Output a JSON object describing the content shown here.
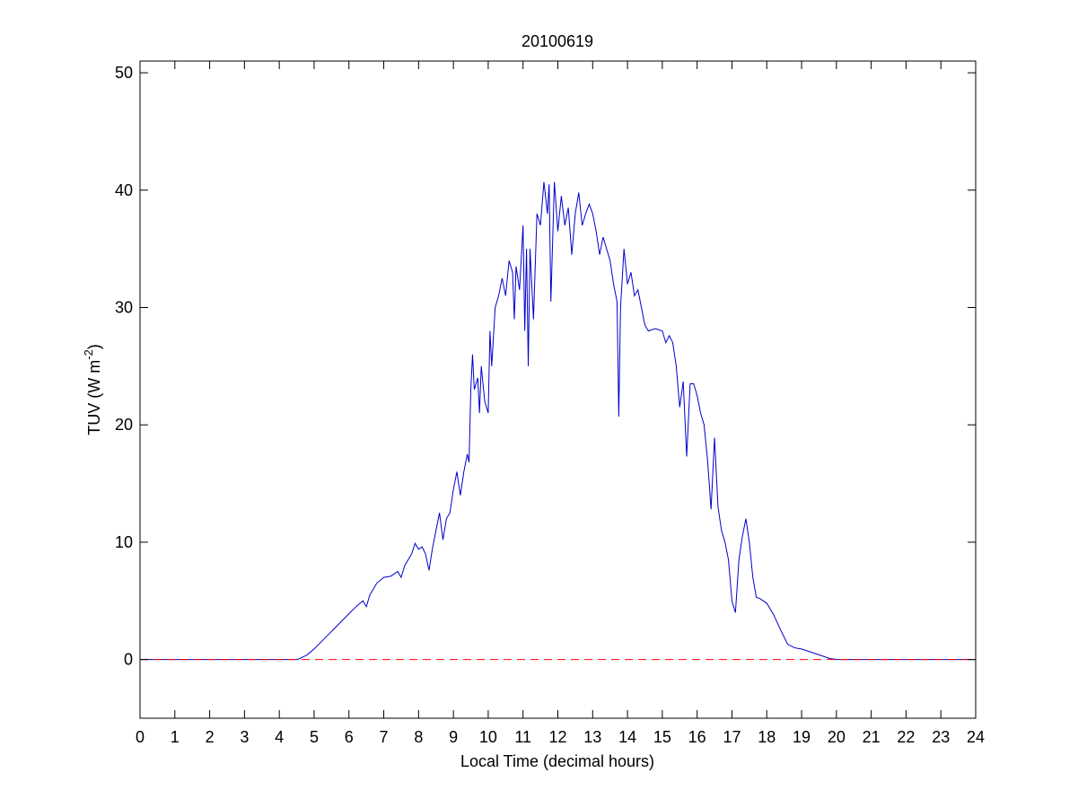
{
  "chart_data": {
    "type": "line",
    "title": "20100619",
    "xlabel": "Local Time (decimal hours)",
    "ylabel": [
      "TUV (W m",
      "-2",
      ")"
    ],
    "xlim": [
      0,
      24
    ],
    "xticks": [
      0,
      1,
      2,
      3,
      4,
      5,
      6,
      7,
      8,
      9,
      10,
      11,
      12,
      13,
      14,
      15,
      16,
      17,
      18,
      19,
      20,
      21,
      22,
      23,
      24
    ],
    "ylim": [
      -5,
      51
    ],
    "yticks": [
      0,
      10,
      20,
      30,
      40,
      50
    ],
    "grid": false,
    "box": true,
    "series": [
      {
        "color": "#0000cc",
        "linestyle": "solid",
        "x": [
          0,
          4.5,
          4.6,
          4.8,
          5.0,
          5.2,
          5.4,
          5.6,
          5.8,
          6.0,
          6.2,
          6.4,
          6.5,
          6.6,
          6.8,
          7.0,
          7.2,
          7.4,
          7.5,
          7.6,
          7.8,
          7.9,
          8.0,
          8.1,
          8.2,
          8.3,
          8.4,
          8.5,
          8.6,
          8.7,
          8.8,
          8.9,
          9.0,
          9.1,
          9.2,
          9.3,
          9.4,
          9.45,
          9.5,
          9.55,
          9.6,
          9.7,
          9.75,
          9.8,
          9.9,
          10.0,
          10.05,
          10.1,
          10.2,
          10.3,
          10.4,
          10.5,
          10.6,
          10.7,
          10.75,
          10.8,
          10.9,
          11.0,
          11.05,
          11.1,
          11.15,
          11.2,
          11.3,
          11.4,
          11.5,
          11.6,
          11.7,
          11.75,
          11.8,
          11.9,
          12.0,
          12.1,
          12.2,
          12.3,
          12.4,
          12.5,
          12.6,
          12.7,
          12.8,
          12.9,
          13.0,
          13.1,
          13.2,
          13.3,
          13.4,
          13.5,
          13.6,
          13.7,
          13.75,
          13.8,
          13.9,
          14.0,
          14.1,
          14.2,
          14.3,
          14.4,
          14.5,
          14.6,
          14.8,
          15.0,
          15.1,
          15.2,
          15.3,
          15.4,
          15.5,
          15.6,
          15.7,
          15.8,
          15.9,
          16.0,
          16.1,
          16.2,
          16.3,
          16.4,
          16.5,
          16.6,
          16.7,
          16.8,
          16.9,
          17.0,
          17.1,
          17.2,
          17.3,
          17.4,
          17.5,
          17.6,
          17.7,
          17.8,
          18.0,
          18.2,
          18.4,
          18.6,
          18.8,
          19.0,
          19.2,
          19.5,
          19.8,
          20.0,
          24
        ],
        "values": [
          0,
          0,
          0.1,
          0.4,
          0.9,
          1.5,
          2.1,
          2.7,
          3.3,
          3.9,
          4.5,
          5.0,
          4.5,
          5.5,
          6.5,
          7.0,
          7.1,
          7.5,
          7.0,
          8.0,
          9.0,
          9.9,
          9.4,
          9.6,
          9.0,
          7.6,
          9.5,
          11.0,
          12.5,
          10.2,
          12.0,
          12.5,
          14.5,
          16.0,
          14.0,
          16.0,
          17.5,
          16.8,
          23.0,
          26.0,
          23.0,
          24.0,
          21.0,
          25.0,
          22.0,
          21.0,
          28.0,
          25.0,
          30.0,
          31.0,
          32.5,
          31.0,
          34.0,
          33.0,
          29.0,
          33.5,
          31.5,
          37.0,
          28.0,
          35.0,
          25.0,
          35.0,
          29.0,
          38.0,
          37.0,
          40.7,
          38.0,
          40.5,
          30.5,
          40.7,
          36.5,
          39.5,
          37.0,
          38.5,
          34.5,
          38.0,
          39.8,
          37.0,
          38.0,
          38.8,
          38.0,
          36.5,
          34.5,
          36.0,
          35.0,
          34.0,
          32.0,
          30.5,
          20.7,
          30.0,
          35.0,
          32.0,
          33.0,
          31.0,
          31.5,
          30.0,
          28.5,
          28.0,
          28.2,
          28.0,
          27.0,
          27.6,
          27.0,
          25.0,
          21.5,
          23.7,
          17.3,
          23.5,
          23.5,
          22.5,
          21.0,
          20.0,
          17.0,
          12.8,
          18.9,
          13.0,
          11.0,
          10.0,
          8.5,
          5.0,
          4.0,
          8.5,
          10.5,
          12.0,
          10.0,
          7.0,
          5.3,
          5.2,
          4.8,
          3.8,
          2.5,
          1.3,
          1.0,
          0.9,
          0.7,
          0.4,
          0.1,
          0,
          0
        ]
      },
      {
        "color": "#ff0000",
        "linestyle": "dashed",
        "x": [
          0,
          24
        ],
        "values": [
          0,
          0
        ]
      }
    ]
  }
}
